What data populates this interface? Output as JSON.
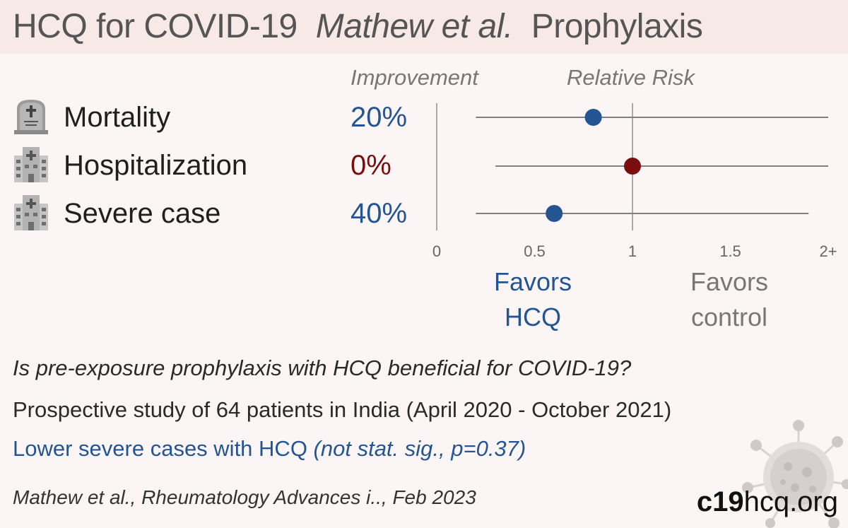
{
  "header": {
    "title_main": "HCQ for COVID-19",
    "title_authors": "Mathew et al.",
    "title_type": "Prophylaxis"
  },
  "column_headers": {
    "improvement": "Improvement",
    "relative_risk": "Relative Risk"
  },
  "outcomes": [
    {
      "label": "Mortality",
      "improvement": "20%",
      "icon": "tombstone-icon"
    },
    {
      "label": "Hospitalization",
      "improvement": "0%",
      "icon": "hospital-icon"
    },
    {
      "label": "Severe case",
      "improvement": "40%",
      "icon": "hospital-icon"
    }
  ],
  "favors": {
    "hcq_line1": "Favors",
    "hcq_line2": "HCQ",
    "control_line1": "Favors",
    "control_line2": "control"
  },
  "question": "Is pre-exposure prophylaxis with HCQ beneficial for COVID-19?",
  "study": "Prospective study of 64 patients in India (April 2020 - October 2021)",
  "result_plain": "Lower severe cases with HCQ ",
  "result_italic": "(not stat. sig., p=0.37)",
  "citation": "Mathew et al., Rheumatology Advances i.., Feb 2023",
  "brand_bold": "c19",
  "brand_rest": "hcq.org",
  "colors": {
    "benefit": "#245592",
    "neutral": "#7a0e0e",
    "control_text": "#777777",
    "ci_line": "#7f7f7f",
    "axis_line": "#a9a9a9",
    "header_bg": "#f6e9e6"
  },
  "chart_data": {
    "type": "forest",
    "xlabel": "",
    "xlim": [
      0,
      2
    ],
    "x_ticks": [
      {
        "value": 0,
        "label": "0"
      },
      {
        "value": 0.5,
        "label": "0.5"
      },
      {
        "value": 1,
        "label": "1"
      },
      {
        "value": 1.5,
        "label": "1.5"
      },
      {
        "value": 2,
        "label": "2+"
      }
    ],
    "reference_line": 1,
    "series": [
      {
        "name": "Mortality",
        "rr": 0.8,
        "ci_low": 0.2,
        "ci_high": 2.0,
        "color": "#245592"
      },
      {
        "name": "Hospitalization",
        "rr": 1.0,
        "ci_low": 0.3,
        "ci_high": 2.0,
        "color": "#7a0e0e"
      },
      {
        "name": "Severe case",
        "rr": 0.6,
        "ci_low": 0.2,
        "ci_high": 1.9,
        "color": "#245592"
      }
    ]
  }
}
